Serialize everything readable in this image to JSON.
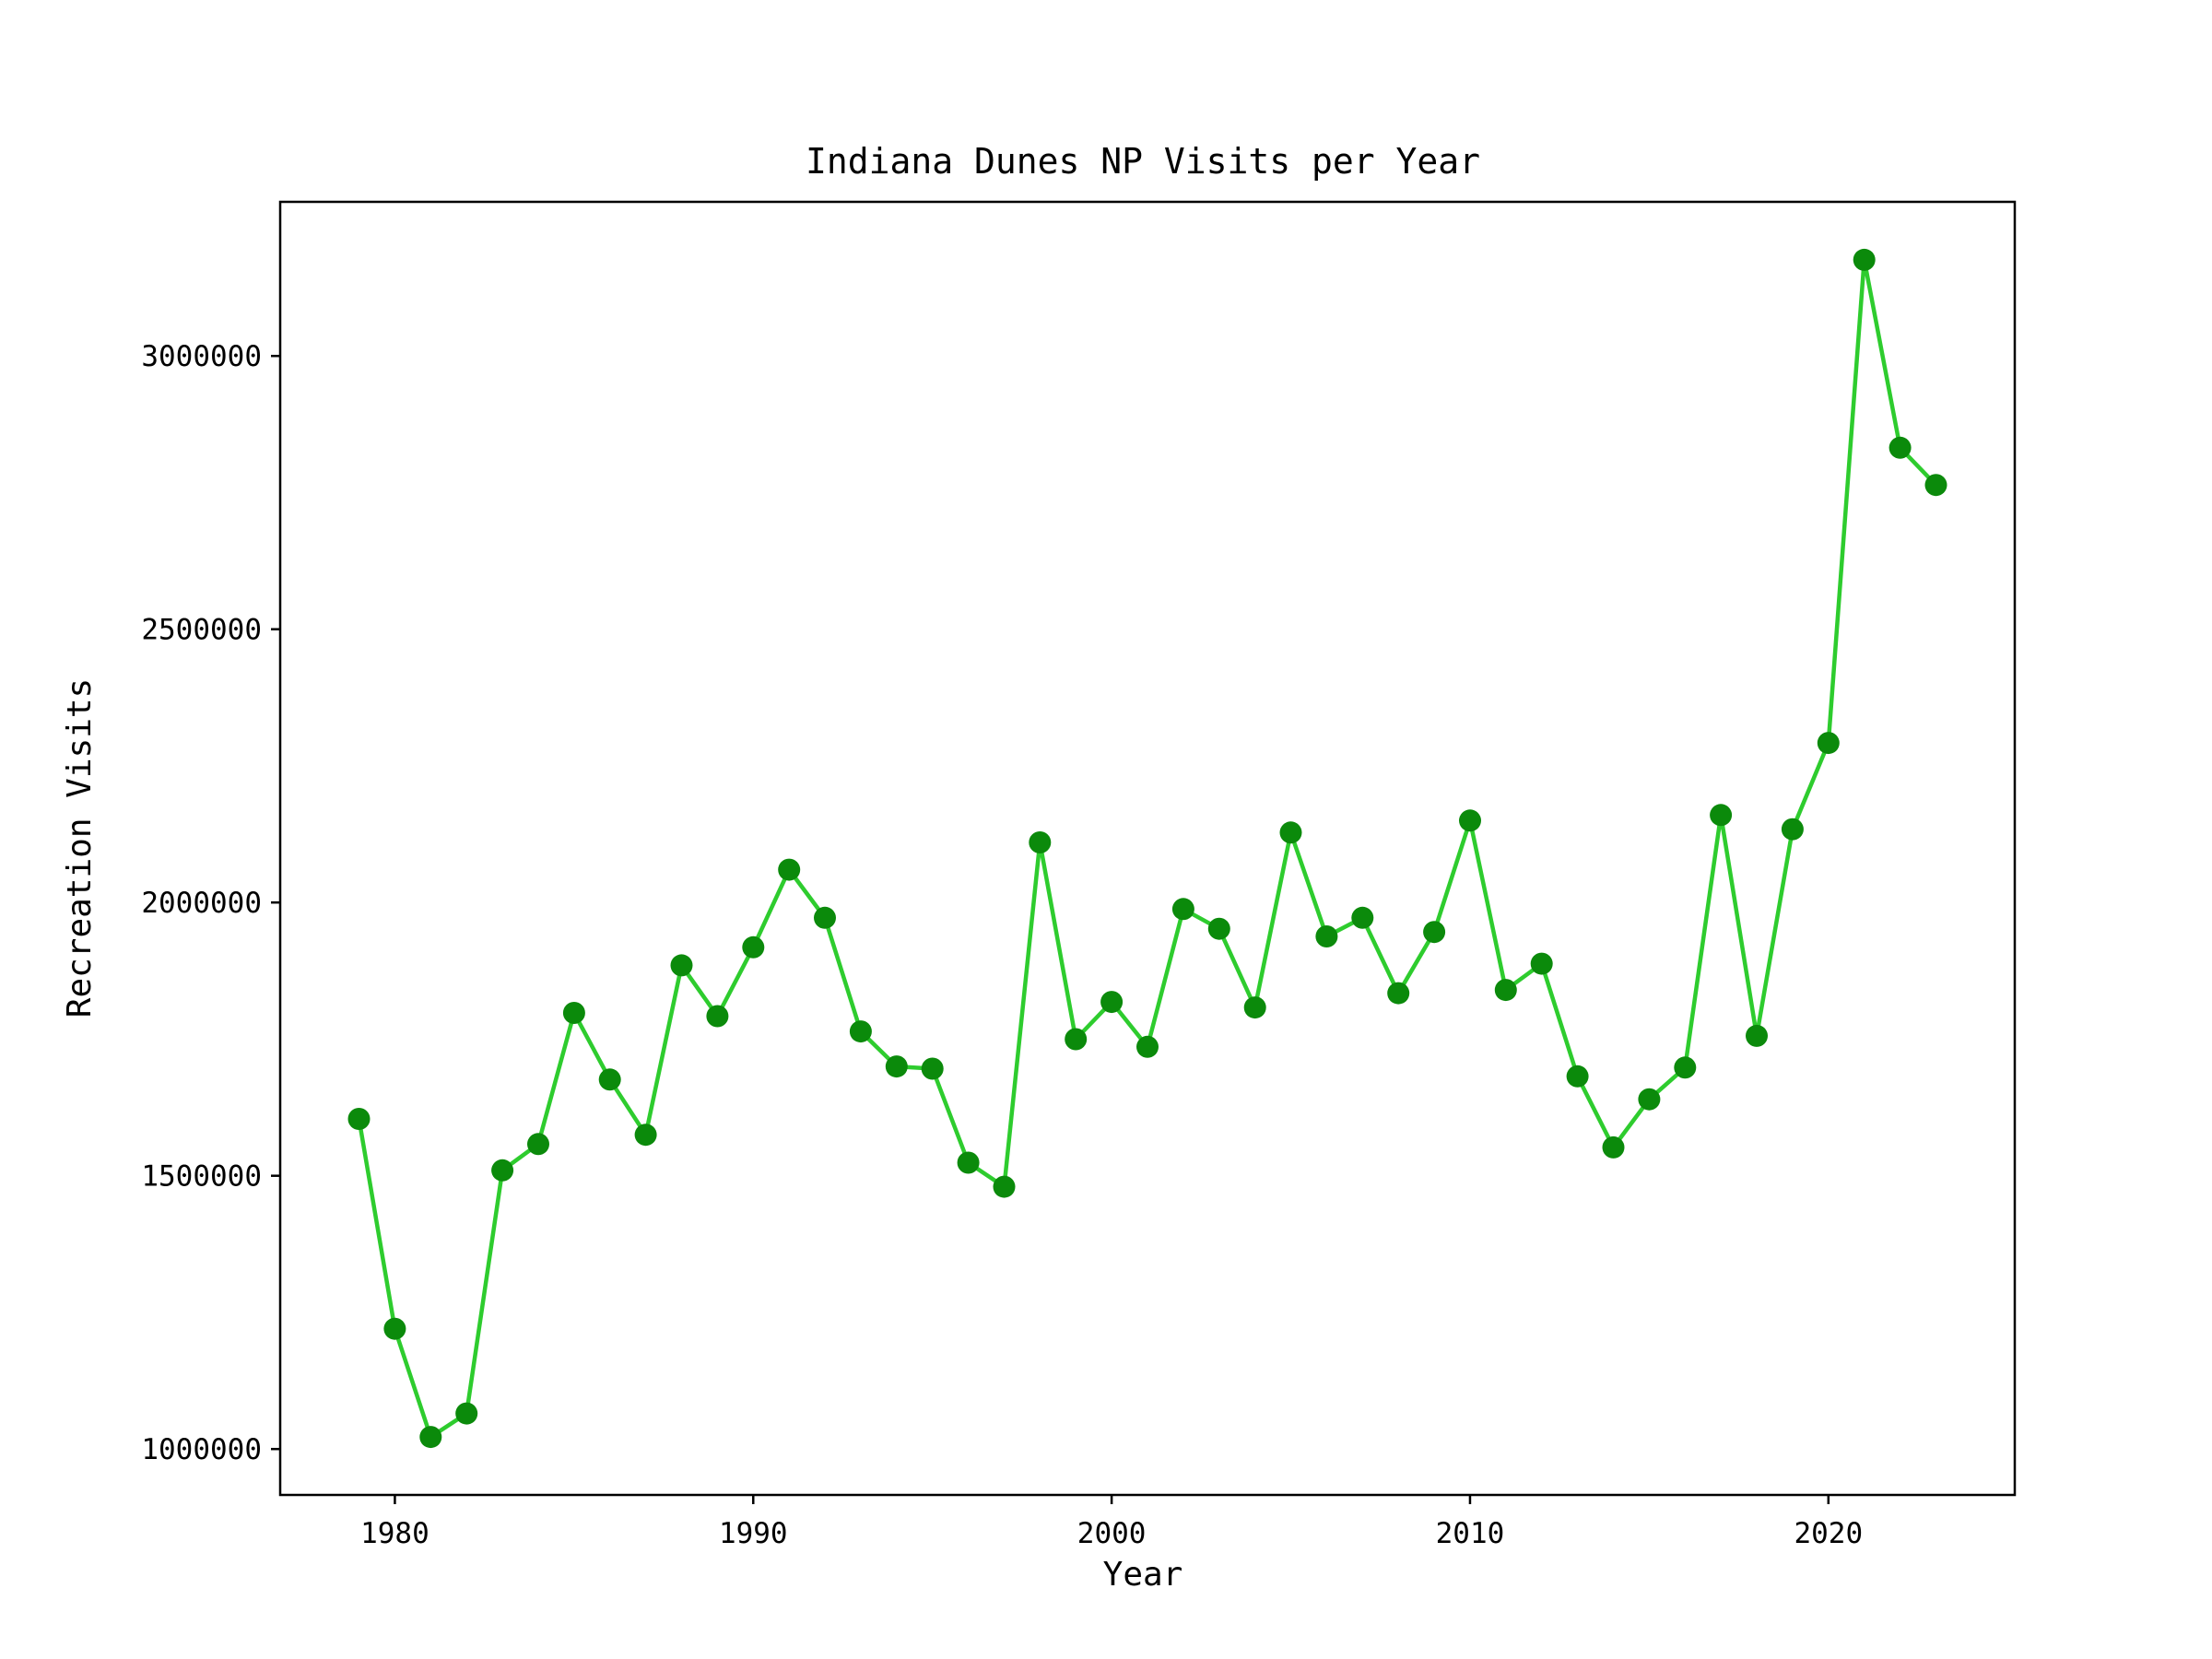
{
  "chart_data": {
    "type": "line",
    "title": "Indiana Dunes NP Visits per Year",
    "xlabel": "Year",
    "ylabel": "Recreation Visits",
    "xlim": [
      1976.8,
      2025.2
    ],
    "ylim": [
      916000,
      3282000
    ],
    "grid": false,
    "legend": "none",
    "x_ticks": [
      1980,
      1990,
      2000,
      2010,
      2020
    ],
    "x_tick_labels": [
      "1980",
      "1990",
      "2000",
      "2010",
      "2020"
    ],
    "y_ticks": [
      1000000,
      1500000,
      2000000,
      2500000,
      3000000
    ],
    "y_tick_labels": [
      "1000000",
      "1500000",
      "2000000",
      "2500000",
      "3000000"
    ],
    "colors": {
      "line": "#2ecc2e",
      "marker": "#0b8a0b",
      "axes": "#000000"
    },
    "x": [
      1979,
      1980,
      1981,
      1982,
      1983,
      1984,
      1985,
      1986,
      1987,
      1988,
      1989,
      1990,
      1991,
      1992,
      1993,
      1994,
      1995,
      1996,
      1997,
      1998,
      1999,
      2000,
      2001,
      2002,
      2003,
      2004,
      2005,
      2006,
      2007,
      2008,
      2009,
      2010,
      2011,
      2012,
      2013,
      2014,
      2015,
      2016,
      2017,
      2018,
      2019,
      2020,
      2021,
      2022,
      2023
    ],
    "y": [
      1604000,
      1220000,
      1022000,
      1065000,
      1510000,
      1558000,
      1798000,
      1676000,
      1575000,
      1885000,
      1792000,
      1918000,
      2060000,
      1972000,
      1764000,
      1700000,
      1696000,
      1524000,
      1480000,
      2110000,
      1750000,
      1818000,
      1736000,
      1988000,
      1952000,
      1808000,
      2128000,
      1938000,
      1972000,
      1834000,
      1946000,
      2150000,
      1840000,
      1888000,
      1682000,
      1552000,
      1640000,
      1698000,
      2160000,
      1756000,
      2134000,
      2292000,
      3176000,
      2832000,
      2764000
    ]
  }
}
